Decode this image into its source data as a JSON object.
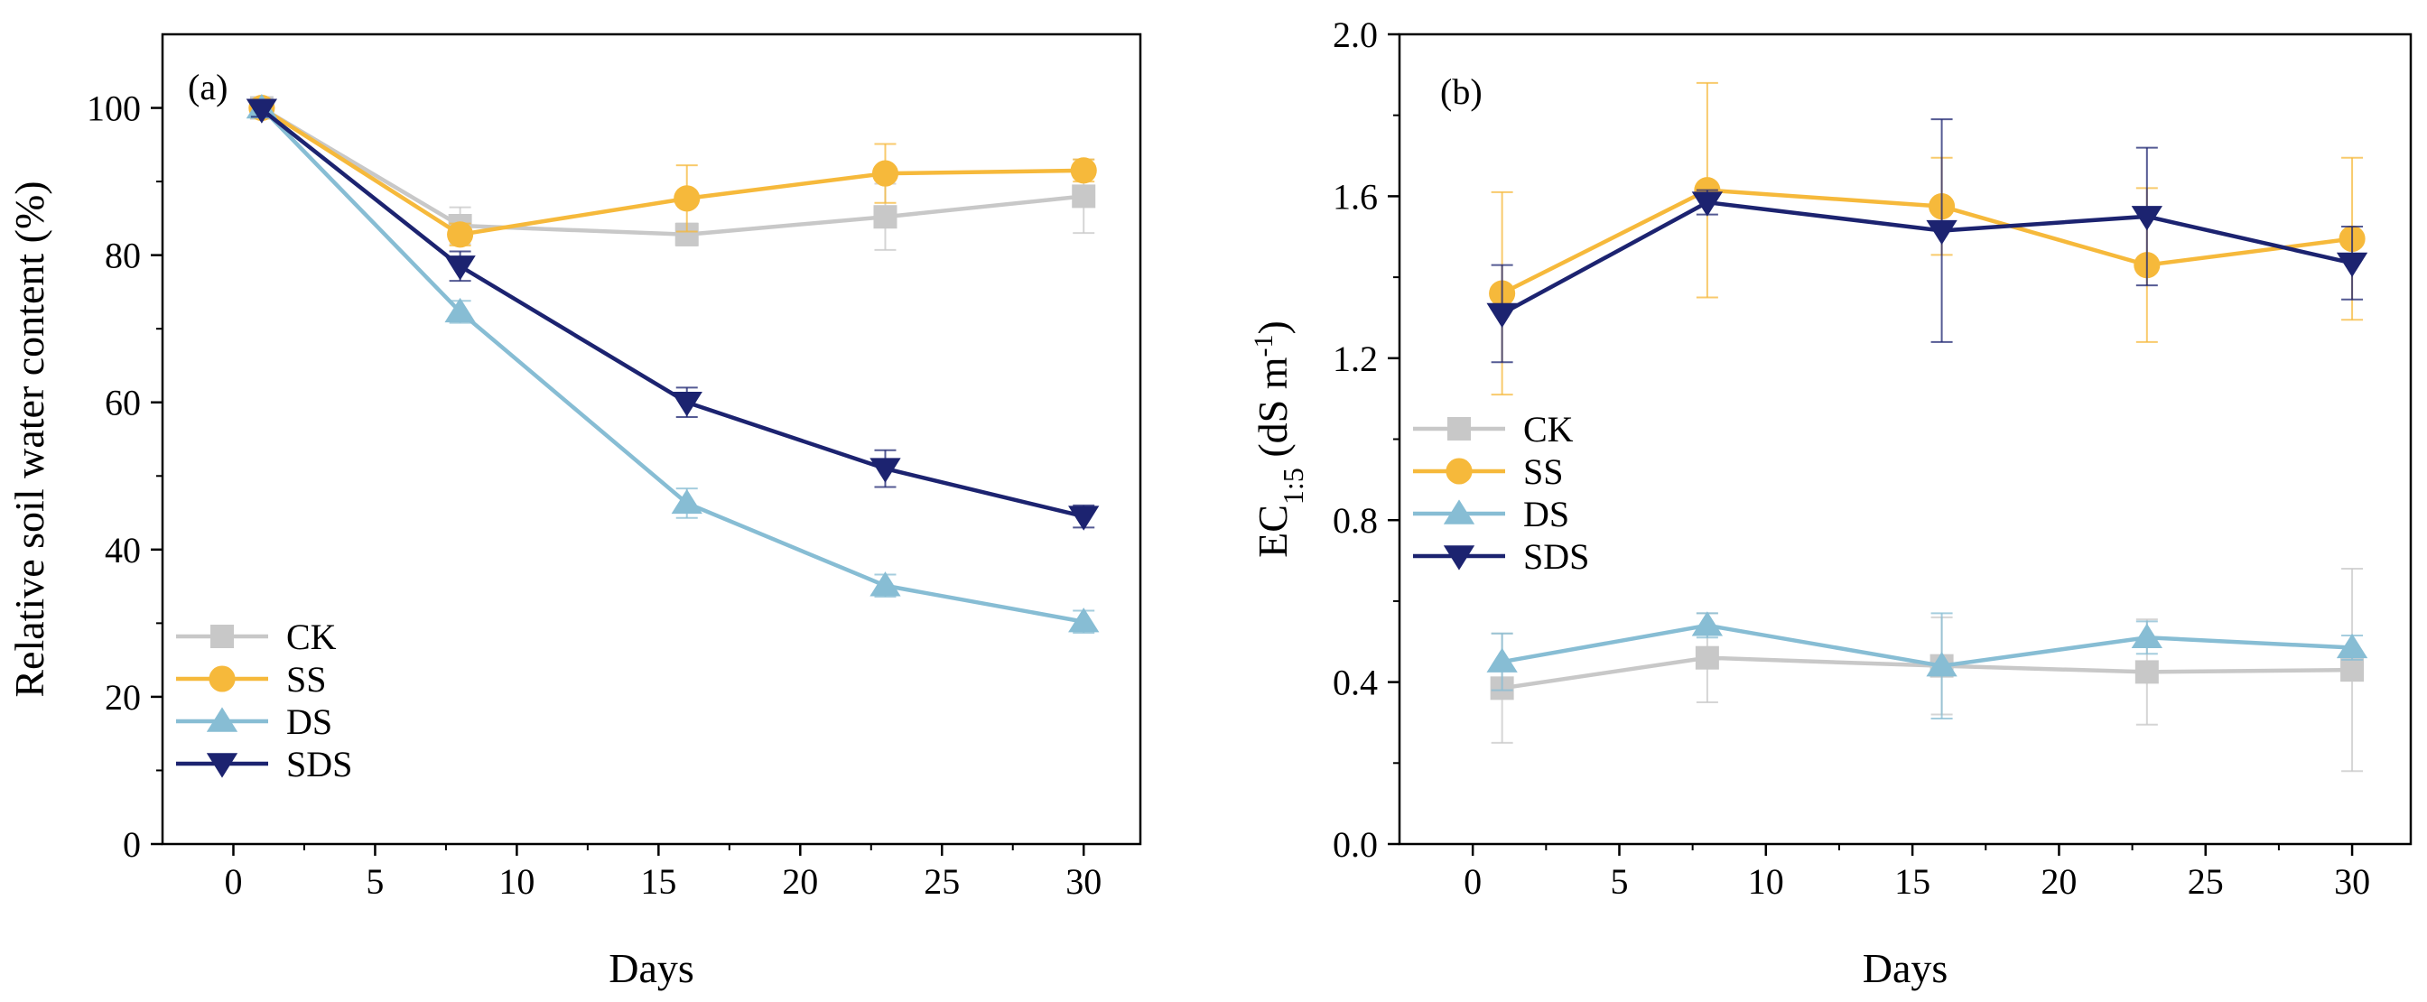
{
  "chart_data": [
    {
      "type": "line",
      "panel": "(a)",
      "xlabel": "Days",
      "ylabel": "Relative soil water content (%)",
      "xlim": [
        -2.5,
        32
      ],
      "ylim": [
        0,
        110
      ],
      "xticks": [
        0,
        5,
        10,
        15,
        20,
        25,
        30
      ],
      "yticks": [
        0,
        20,
        40,
        60,
        80,
        100
      ],
      "x": [
        1,
        8,
        16,
        23,
        30
      ],
      "legend_position": "lower-left",
      "series": [
        {
          "name": "CK",
          "color": "#c8c8c8",
          "marker": "square",
          "values": [
            100,
            84,
            82.8,
            85.2,
            88
          ],
          "errors": [
            1,
            2.5,
            1.5,
            4.5,
            5
          ]
        },
        {
          "name": "SS",
          "color": "#f6b93b",
          "marker": "circle",
          "values": [
            100,
            82.8,
            87.7,
            91.1,
            91.5
          ],
          "errors": [
            1,
            1.5,
            4.5,
            4,
            1.5
          ]
        },
        {
          "name": "DS",
          "color": "#87bdd4",
          "marker": "triangle-up",
          "values": [
            100,
            72.3,
            46.3,
            35.1,
            30.2
          ],
          "errors": [
            1,
            1.5,
            2,
            1.5,
            1.5
          ]
        },
        {
          "name": "SDS",
          "color": "#1c2370",
          "marker": "triangle-down",
          "values": [
            99.8,
            78.5,
            60,
            51,
            44.5
          ],
          "errors": [
            1,
            2,
            2,
            2.5,
            1.5
          ]
        }
      ]
    },
    {
      "type": "line",
      "panel": "(b)",
      "xlabel": "Days",
      "ylabel_main": "EC",
      "ylabel_sub": "1:5",
      "ylabel_unit_pre": " (dS m",
      "ylabel_sup": "-1",
      "ylabel_unit_post": ")",
      "xlim": [
        -2.5,
        32
      ],
      "ylim": [
        0,
        2.0
      ],
      "xticks": [
        0,
        5,
        10,
        15,
        20,
        25,
        30
      ],
      "yticks": [
        "0.0",
        "0.4",
        "0.8",
        "1.2",
        "1.6",
        "2.0"
      ],
      "x": [
        1,
        8,
        16,
        23,
        30
      ],
      "legend_position": "center-left",
      "series": [
        {
          "name": "CK",
          "color": "#c8c8c8",
          "marker": "square",
          "values": [
            0.385,
            0.46,
            0.44,
            0.425,
            0.43
          ],
          "errors": [
            0.135,
            0.11,
            0.12,
            0.13,
            0.25
          ]
        },
        {
          "name": "SS",
          "color": "#f6b93b",
          "marker": "circle",
          "values": [
            1.36,
            1.615,
            1.575,
            1.43,
            1.495
          ],
          "errors": [
            0.25,
            0.265,
            0.12,
            0.19,
            0.2
          ]
        },
        {
          "name": "DS",
          "color": "#87bdd4",
          "marker": "triangle-up",
          "values": [
            0.45,
            0.54,
            0.44,
            0.51,
            0.485
          ],
          "errors": [
            0.07,
            0.03,
            0.13,
            0.04,
            0.03
          ]
        },
        {
          "name": "SDS",
          "color": "#1c2370",
          "marker": "triangle-down",
          "values": [
            1.31,
            1.585,
            1.515,
            1.55,
            1.435
          ],
          "errors": [
            0.12,
            0.03,
            0.275,
            0.17,
            0.09
          ]
        }
      ]
    }
  ]
}
